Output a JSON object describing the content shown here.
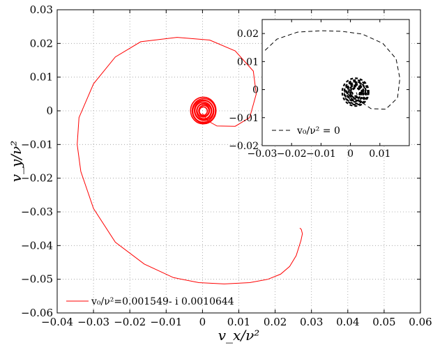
{
  "chart_data": [
    {
      "type": "line",
      "title": "",
      "xlabel": "v_x/ν²",
      "ylabel": "v_y/ν²",
      "xlim": [
        -0.04,
        0.06
      ],
      "ylim": [
        -0.06,
        0.03
      ],
      "x_ticks": [
        -0.04,
        -0.03,
        -0.02,
        -0.01,
        0,
        0.01,
        0.02,
        0.03,
        0.04,
        0.05,
        0.06
      ],
      "x_tick_labels": [
        "−0.04",
        "−0.03",
        "−0.02",
        "−0.01",
        "0",
        "0.01",
        "0.02",
        "0.03",
        "0.04",
        "0.05",
        "0.06"
      ],
      "y_ticks": [
        0.03,
        0.02,
        0.01,
        0,
        -0.01,
        -0.02,
        -0.03,
        -0.04,
        -0.05,
        -0.06
      ],
      "y_tick_labels": [
        "0.03",
        "0.02",
        "0.01",
        "0",
        "−0.01",
        "−0.02",
        "−0.03",
        "−0.04",
        "−0.05",
        "−0.06"
      ],
      "grid": true,
      "legend_position": "bottom-left",
      "series": [
        {
          "name": "v₀/ν²=0.001549- i 0.0010644",
          "color": "#ff0000",
          "style": "solid",
          "points": [
            [
              0.0268,
              -0.0348
            ],
            [
              0.0272,
              -0.0352
            ],
            [
              0.0275,
              -0.0365
            ],
            [
              0.0271,
              -0.0385
            ],
            [
              0.0258,
              -0.043
            ],
            [
              0.024,
              -0.0462
            ],
            [
              0.0215,
              -0.0485
            ],
            [
              0.018,
              -0.05
            ],
            [
              0.013,
              -0.051
            ],
            [
              0.006,
              -0.0514
            ],
            [
              -0.001,
              -0.051
            ],
            [
              -0.008,
              -0.0495
            ],
            [
              -0.016,
              -0.0455
            ],
            [
              -0.024,
              -0.039
            ],
            [
              -0.03,
              -0.029
            ],
            [
              -0.0335,
              -0.018
            ],
            [
              -0.0345,
              -0.01
            ],
            [
              -0.034,
              -0.002
            ],
            [
              -0.03,
              0.008
            ],
            [
              -0.024,
              0.016
            ],
            [
              -0.017,
              0.0205
            ],
            [
              -0.007,
              0.0218
            ],
            [
              0.002,
              0.021
            ],
            [
              0.009,
              0.0178
            ],
            [
              0.014,
              0.0118
            ],
            [
              0.0148,
              0.005
            ],
            [
              0.013,
              -0.002
            ],
            [
              0.009,
              -0.0046
            ],
            [
              0.004,
              -0.0045
            ],
            [
              0.0015,
              -0.003
            ],
            [
              0.0,
              -0.0008
            ]
          ],
          "core": {
            "center": [
              0.0003,
              0.0
            ],
            "radii": [
              0.0035,
              0.0032,
              0.0029,
              0.0026,
              0.0023,
              0.002,
              0.0017,
              0.0014,
              0.0011
            ]
          }
        }
      ]
    },
    {
      "type": "line",
      "title": "",
      "xlabel": "",
      "ylabel": "",
      "xlim": [
        -0.03,
        0.02
      ],
      "ylim": [
        -0.02,
        0.025
      ],
      "x_ticks": [
        -0.03,
        -0.02,
        -0.01,
        0,
        0.01
      ],
      "x_tick_labels": [
        "−0.03",
        "−0.02",
        "−0.01",
        "0",
        "0.01"
      ],
      "y_ticks": [
        0.02,
        0.01,
        0,
        -0.01,
        -0.02
      ],
      "y_tick_labels": [
        "0.02",
        "0.01",
        "0",
        "−0.01",
        "−0.02"
      ],
      "grid": false,
      "legend_position": "bottom-left",
      "series": [
        {
          "name": "v₀/ν² = 0",
          "color": "#000000",
          "style": "dashed",
          "points": [
            [
              -0.029,
              0.014
            ],
            [
              -0.025,
              0.018
            ],
            [
              -0.018,
              0.0205
            ],
            [
              -0.01,
              0.021
            ],
            [
              -0.003,
              0.0208
            ],
            [
              0.004,
              0.0198
            ],
            [
              0.011,
              0.0165
            ],
            [
              0.0155,
              0.011
            ],
            [
              0.0168,
              0.004
            ],
            [
              0.016,
              -0.003
            ],
            [
              0.012,
              -0.007
            ],
            [
              0.007,
              -0.0068
            ],
            [
              0.003,
              -0.004
            ],
            [
              0.002,
              -0.001
            ]
          ],
          "core": {
            "center": [
              0.0018,
              -0.001
            ],
            "radii": [
              0.0045,
              0.004,
              0.0036,
              0.0032,
              0.0028,
              0.0025,
              0.0022,
              0.0019,
              0.0016,
              0.0013
            ]
          }
        }
      ]
    }
  ]
}
